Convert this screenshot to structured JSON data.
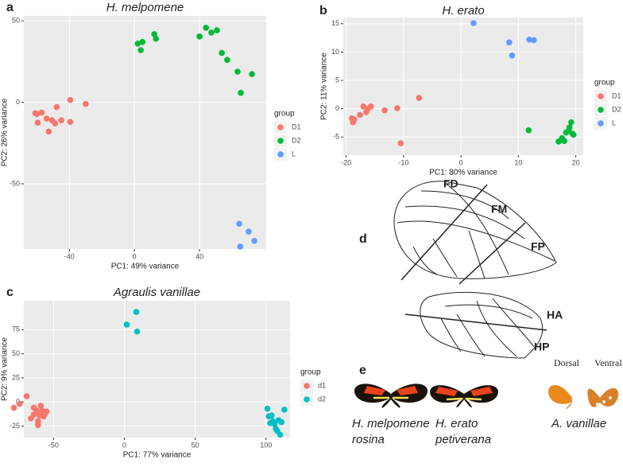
{
  "chart_data": [
    {
      "type": "scatter",
      "panel": "a",
      "title": "H. melpomene",
      "x_label": "PC1: 49% variance",
      "y_label": "PC2: 26% variance",
      "legend_title": "group",
      "legend": "right",
      "grid": true,
      "xlim": [
        -68,
        81
      ],
      "ylim": [
        -90,
        53
      ],
      "xticks": [
        -40,
        0,
        40
      ],
      "yticks": [
        -50,
        0,
        50
      ],
      "series": [
        {
          "name": "D1",
          "color": "#F8766D",
          "x": [
            -61,
            -59.5,
            -60,
            -57,
            -54,
            -52.7,
            -50.7,
            -48.8,
            -47.8,
            -45,
            -39.5,
            -39.5,
            -30
          ],
          "y": [
            -6.7,
            -12.5,
            -7.2,
            -6.3,
            -10,
            -18,
            -11,
            -13,
            -2.9,
            -11,
            1.4,
            -12,
            -1
          ]
        },
        {
          "name": "D2",
          "color": "#00BA38",
          "x": [
            2,
            4.9,
            3.9,
            12.2,
            13.2,
            40,
            44,
            47.3,
            50.7,
            53.7,
            57,
            63.4,
            65.4,
            72.2
          ],
          "y": [
            36,
            37,
            32,
            41.8,
            39,
            40.4,
            45.7,
            42.8,
            44.2,
            30.3,
            26,
            18.8,
            5.8,
            17.3
          ]
        },
        {
          "name": "L",
          "color": "#619CFF",
          "x": [
            64.4,
            70.2,
            73.7,
            65
          ],
          "y": [
            -74.5,
            -79.3,
            -85,
            -88.5
          ]
        }
      ]
    },
    {
      "type": "scatter",
      "panel": "b",
      "title": "H. erato",
      "x_label": "PC1: 80% variance",
      "y_label": "PC2: 11% variance",
      "legend_title": "group",
      "legend": "right",
      "grid": true,
      "xlim": [
        -20.5,
        21.3
      ],
      "ylim": [
        -8.2,
        16.1
      ],
      "xticks": [
        -20,
        -10,
        0,
        10,
        20
      ],
      "yticks": [
        -5,
        0,
        5,
        10,
        15
      ],
      "series": [
        {
          "name": "D1",
          "color": "#F8766D",
          "x": [
            -19,
            -18.8,
            -18.6,
            -17.6,
            -17,
            -16.2,
            -16.5,
            -15.7,
            -13.3,
            -11.1,
            -10.5,
            -7.3
          ],
          "y": [
            -1.7,
            -2.4,
            -1.9,
            -1.1,
            0.4,
            0,
            -0.6,
            0.4,
            -0.3,
            0.1,
            -6.1,
            1.9
          ]
        },
        {
          "name": "D2",
          "color": "#00BA38",
          "x": [
            11.8,
            17,
            17.6,
            18,
            18.3,
            18.7,
            18.9,
            19.2,
            19.4,
            19.6
          ],
          "y": [
            -3.8,
            -5.8,
            -5.2,
            -5.7,
            -4.2,
            -3.9,
            -3.3,
            -2.4,
            -4.4,
            -4.6
          ]
        },
        {
          "name": "L",
          "color": "#619CFF",
          "x": [
            2.2,
            8.4,
            8.9,
            11.9,
            12.7
          ],
          "y": [
            15.1,
            11.7,
            9.4,
            12.2,
            12.1
          ]
        }
      ]
    },
    {
      "type": "scatter",
      "panel": "c",
      "title": "Agraulis vanillae",
      "x_label": "PC1: 77% variance",
      "y_label": "PC2: 9% variance",
      "legend_title": "group",
      "legend": "right",
      "grid": true,
      "xlim": [
        -71,
        117
      ],
      "ylim": [
        -37,
        105
      ],
      "xticks": [
        -50,
        0,
        50,
        100
      ],
      "yticks": [
        -25,
        0,
        25,
        50,
        75
      ],
      "series": [
        {
          "name": "d1",
          "color": "#F8766D",
          "x": [
            -78,
            -74,
            -69,
            -66,
            -64,
            -62,
            -61,
            -60,
            -59,
            -58,
            -57,
            -56,
            -64,
            -61,
            -59,
            -55
          ],
          "y": [
            -6,
            -2,
            6,
            -17,
            -6,
            -9,
            -24,
            -14,
            -11,
            -9,
            -15,
            -12,
            -13,
            -20,
            -4,
            -10
          ]
        },
        {
          "name": "d2",
          "color": "#00BFC4",
          "x": [
            1.7,
            8.4,
            9,
            101,
            102,
            103,
            104,
            105,
            106,
            107,
            108,
            109,
            110,
            111,
            113
          ],
          "y": [
            80.3,
            93.4,
            73,
            -7,
            -15,
            -22,
            -14,
            -20,
            -23,
            -28,
            -30,
            -19,
            -34,
            -21,
            -8
          ]
        }
      ]
    }
  ],
  "diagram": {
    "panel": "d",
    "labels": [
      "FD",
      "FM",
      "FP",
      "HA",
      "HP"
    ]
  },
  "photos": {
    "panel": "e",
    "views": [
      "Dorsal",
      "Ventral"
    ],
    "captions": [
      [
        "H. melpomene",
        "rosina"
      ],
      [
        "H. erato",
        "petiverana"
      ],
      [
        "A. vanillae"
      ]
    ]
  }
}
